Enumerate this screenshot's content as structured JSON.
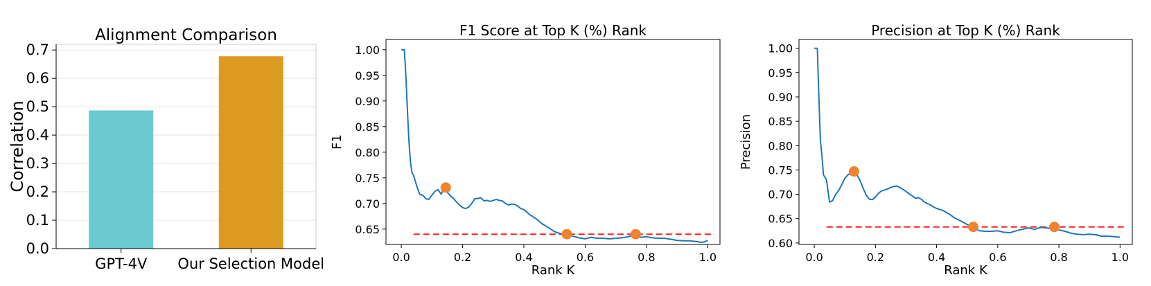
{
  "chart_data": [
    {
      "type": "bar",
      "title": "Alignment Comparison",
      "xlabel": "",
      "ylabel": "Correlation",
      "categories": [
        "GPT-4V",
        "Our Selection Model"
      ],
      "values": [
        0.487,
        0.678
      ],
      "colors": [
        "#6BC9D1",
        "#DC9A20"
      ],
      "ylim": [
        0,
        0.72
      ],
      "yticks": [
        0.0,
        0.1,
        0.2,
        0.3,
        0.4,
        0.5,
        0.6,
        0.7
      ],
      "ytick_labels": [
        "0.0",
        "0.1",
        "0.2",
        "0.3",
        "0.4",
        "0.5",
        "0.6",
        "0.7"
      ],
      "grid": "horizontal"
    },
    {
      "type": "line",
      "title": "F1 Score at Top K (%) Rank",
      "xlabel": "Rank K",
      "ylabel": "F1",
      "xlim": [
        -0.05,
        1.04
      ],
      "ylim": [
        0.62,
        1.02
      ],
      "xticks": [
        0.0,
        0.2,
        0.4,
        0.6,
        0.8,
        1.0
      ],
      "xtick_labels": [
        "0.0",
        "0.2",
        "0.4",
        "0.6",
        "0.8",
        "1.0"
      ],
      "yticks": [
        0.65,
        0.7,
        0.75,
        0.8,
        0.85,
        0.9,
        0.95,
        1.0
      ],
      "ytick_labels": [
        "0.65",
        "0.70",
        "0.75",
        "0.80",
        "0.85",
        "0.90",
        "0.95",
        "1.00"
      ],
      "line_color": "#1F77B4",
      "series": [
        {
          "x": [
            0.0,
            0.01,
            0.015,
            0.02,
            0.025,
            0.03,
            0.035,
            0.04,
            0.05,
            0.06,
            0.07,
            0.08,
            0.09,
            0.1,
            0.11,
            0.12,
            0.13,
            0.14,
            0.15,
            0.16,
            0.17,
            0.18,
            0.19,
            0.2,
            0.21,
            0.22,
            0.23,
            0.24,
            0.25,
            0.26,
            0.27,
            0.28,
            0.29,
            0.3,
            0.31,
            0.32,
            0.33,
            0.34,
            0.35,
            0.36,
            0.37,
            0.38,
            0.39,
            0.4,
            0.42,
            0.44,
            0.46,
            0.48,
            0.5,
            0.52,
            0.54,
            0.56,
            0.58,
            0.6,
            0.62,
            0.64,
            0.66,
            0.68,
            0.7,
            0.72,
            0.74,
            0.76,
            0.78,
            0.8,
            0.82,
            0.84,
            0.86,
            0.88,
            0.9,
            0.92,
            0.94,
            0.96,
            0.98,
            0.99,
            1.0
          ],
          "y": [
            1.0,
            1.0,
            0.95,
            0.88,
            0.82,
            0.78,
            0.76,
            0.755,
            0.735,
            0.718,
            0.716,
            0.709,
            0.708,
            0.716,
            0.724,
            0.727,
            0.718,
            0.73,
            0.722,
            0.715,
            0.71,
            0.703,
            0.697,
            0.692,
            0.69,
            0.693,
            0.7,
            0.709,
            0.71,
            0.711,
            0.705,
            0.706,
            0.704,
            0.706,
            0.708,
            0.706,
            0.705,
            0.7,
            0.697,
            0.699,
            0.698,
            0.695,
            0.69,
            0.688,
            0.678,
            0.67,
            0.66,
            0.653,
            0.645,
            0.641,
            0.64,
            0.636,
            0.633,
            0.631,
            0.634,
            0.632,
            0.632,
            0.631,
            0.632,
            0.633,
            0.635,
            0.638,
            0.634,
            0.635,
            0.633,
            0.632,
            0.632,
            0.63,
            0.628,
            0.627,
            0.627,
            0.626,
            0.624,
            0.625,
            0.628
          ]
        }
      ],
      "markers": {
        "x": [
          0.145,
          0.54,
          0.765
        ],
        "y": [
          0.731,
          0.64,
          0.64
        ],
        "color": "#F0832F"
      },
      "reference_line": {
        "y": 0.64,
        "x_from": 0.04,
        "x_to": 1.02,
        "color": "#FF2020",
        "style": "dashed"
      }
    },
    {
      "type": "line",
      "title": "Precision at Top K (%) Rank",
      "xlabel": "Rank K",
      "ylabel": "Precision",
      "xlim": [
        -0.05,
        1.04
      ],
      "ylim": [
        0.597,
        1.018
      ],
      "xticks": [
        0.0,
        0.2,
        0.4,
        0.6,
        0.8,
        1.0
      ],
      "xtick_labels": [
        "0.0",
        "0.2",
        "0.4",
        "0.6",
        "0.8",
        "1.0"
      ],
      "yticks": [
        0.6,
        0.65,
        0.7,
        0.75,
        0.8,
        0.85,
        0.9,
        0.95,
        1.0
      ],
      "ytick_labels": [
        "0.60",
        "0.65",
        "0.70",
        "0.75",
        "0.80",
        "0.85",
        "0.90",
        "0.95",
        "1.00"
      ],
      "line_color": "#1F77B4",
      "series": [
        {
          "x": [
            0.0,
            0.01,
            0.015,
            0.02,
            0.025,
            0.03,
            0.035,
            0.04,
            0.05,
            0.06,
            0.07,
            0.08,
            0.09,
            0.1,
            0.11,
            0.12,
            0.13,
            0.14,
            0.15,
            0.16,
            0.17,
            0.18,
            0.19,
            0.2,
            0.21,
            0.22,
            0.23,
            0.24,
            0.25,
            0.26,
            0.27,
            0.28,
            0.29,
            0.3,
            0.31,
            0.32,
            0.33,
            0.34,
            0.35,
            0.36,
            0.37,
            0.38,
            0.39,
            0.4,
            0.42,
            0.44,
            0.46,
            0.48,
            0.5,
            0.52,
            0.54,
            0.56,
            0.58,
            0.6,
            0.62,
            0.64,
            0.66,
            0.68,
            0.7,
            0.72,
            0.74,
            0.76,
            0.78,
            0.8,
            0.82,
            0.84,
            0.86,
            0.88,
            0.9,
            0.92,
            0.94,
            0.96,
            0.98,
            1.0
          ],
          "y": [
            1.0,
            1.0,
            0.9,
            0.81,
            0.78,
            0.74,
            0.735,
            0.73,
            0.684,
            0.687,
            0.7,
            0.708,
            0.72,
            0.733,
            0.74,
            0.744,
            0.746,
            0.74,
            0.728,
            0.712,
            0.698,
            0.69,
            0.689,
            0.694,
            0.702,
            0.707,
            0.709,
            0.711,
            0.714,
            0.716,
            0.717,
            0.714,
            0.71,
            0.706,
            0.701,
            0.697,
            0.692,
            0.693,
            0.69,
            0.684,
            0.681,
            0.678,
            0.674,
            0.671,
            0.667,
            0.66,
            0.651,
            0.645,
            0.638,
            0.633,
            0.625,
            0.624,
            0.624,
            0.625,
            0.622,
            0.621,
            0.625,
            0.628,
            0.631,
            0.628,
            0.632,
            0.631,
            0.629,
            0.627,
            0.624,
            0.62,
            0.618,
            0.617,
            0.618,
            0.617,
            0.614,
            0.614,
            0.613,
            0.612
          ]
        }
      ],
      "markers": {
        "x": [
          0.13,
          0.52,
          0.785
        ],
        "y": [
          0.747,
          0.633,
          0.633
        ],
        "color": "#F0832F"
      },
      "reference_line": {
        "y": 0.633,
        "x_from": 0.04,
        "x_to": 1.02,
        "color": "#FF2020",
        "style": "dashed"
      }
    }
  ]
}
